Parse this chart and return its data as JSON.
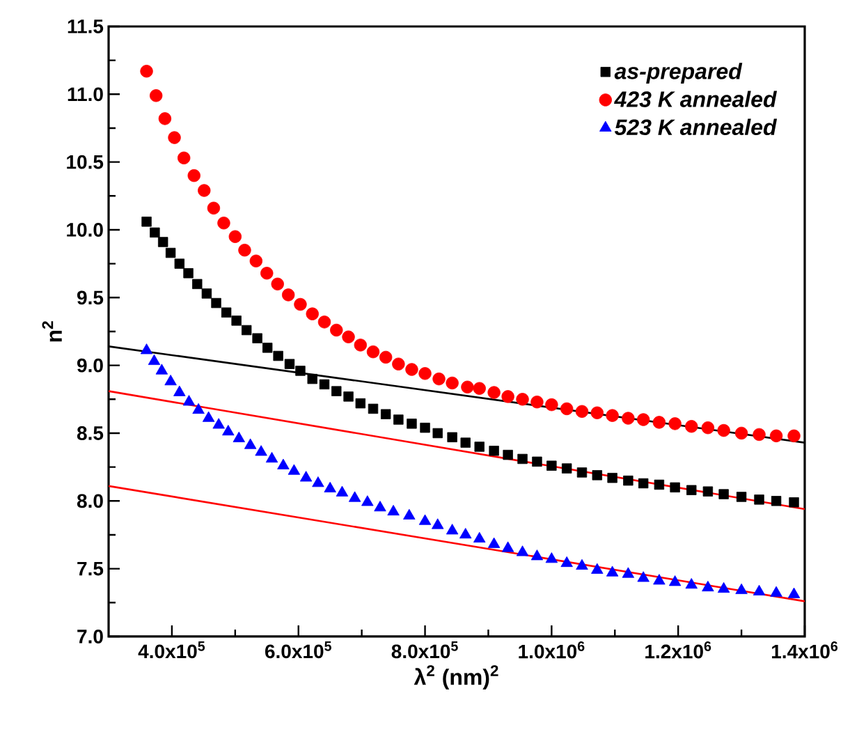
{
  "chart_data": {
    "type": "scatter",
    "xlabel": "λ$^{2}$ (nm)$^{2}$",
    "ylabel": "n$^{2}$",
    "xlim": [
      300000,
      1400000
    ],
    "xticks": [
      {
        "value": 400000,
        "label": "4.0x10$^{5}$"
      },
      {
        "value": 600000,
        "label": "6.0x10$^{5}$"
      },
      {
        "value": 800000,
        "label": "8.0x10$^{5}$"
      },
      {
        "value": 1000000,
        "label": "1.0x10$^{6}$"
      },
      {
        "value": 1200000,
        "label": "1.2x10$^{6}$"
      },
      {
        "value": 1400000,
        "label": "1.4x10$^{6}$"
      }
    ],
    "ylim": [
      7.0,
      11.5
    ],
    "yticks": [
      {
        "value": 7,
        "label": "7.0"
      },
      {
        "value": 7.5,
        "label": "7.5"
      },
      {
        "value": 8,
        "label": "8.0"
      },
      {
        "value": 8.5,
        "label": "8.5"
      },
      {
        "value": 9,
        "label": "9.0"
      },
      {
        "value": 9.5,
        "label": "9.5"
      },
      {
        "value": 10,
        "label": "10.0"
      },
      {
        "value": 10.5,
        "label": "10.5"
      },
      {
        "value": 11,
        "label": "11.0"
      },
      {
        "value": 11.5,
        "label": "11.5"
      }
    ],
    "legend": "top right",
    "grid": false,
    "series": [
      {
        "name": "as-prepared",
        "color": "#000000",
        "marker": "square",
        "x": [
          360000,
          373000,
          386000,
          398000,
          412000,
          426000,
          440000,
          455000,
          470000,
          486000,
          502000,
          518000,
          535000,
          551000,
          568000,
          586000,
          603000,
          622000,
          641000,
          660000,
          679000,
          698000,
          718000,
          738000,
          758000,
          779000,
          800000,
          820000,
          843000,
          864000,
          886000,
          909000,
          931000,
          954000,
          977000,
          1000000,
          1024000,
          1048000,
          1072000,
          1096000,
          1121000,
          1145000,
          1170000,
          1195000,
          1221000,
          1247000,
          1272000,
          1300000,
          1328000,
          1355000,
          1383000
        ],
        "values": [
          10.06,
          9.98,
          9.91,
          9.83,
          9.75,
          9.68,
          9.6,
          9.53,
          9.46,
          9.39,
          9.33,
          9.26,
          9.2,
          9.13,
          9.07,
          9.01,
          8.96,
          8.9,
          8.86,
          8.81,
          8.77,
          8.72,
          8.68,
          8.64,
          8.6,
          8.57,
          8.54,
          8.5,
          8.47,
          8.43,
          8.4,
          8.37,
          8.34,
          8.31,
          8.29,
          8.26,
          8.24,
          8.21,
          8.19,
          8.17,
          8.15,
          8.13,
          8.12,
          8.1,
          8.08,
          8.07,
          8.05,
          8.03,
          8.01,
          8.0,
          7.99
        ]
      },
      {
        "name": "423 K annealed",
        "color": "#ff0000",
        "marker": "circle",
        "x": [
          360000,
          375000,
          389000,
          404000,
          419000,
          435000,
          451000,
          466000,
          482000,
          500000,
          515000,
          533000,
          550000,
          567000,
          584000,
          603000,
          622000,
          641000,
          660000,
          679000,
          698000,
          718000,
          738000,
          758000,
          779000,
          800000,
          822000,
          843000,
          867000,
          886000,
          909000,
          931000,
          954000,
          977000,
          1000000,
          1024000,
          1048000,
          1072000,
          1096000,
          1121000,
          1145000,
          1170000,
          1195000,
          1221000,
          1247000,
          1272000,
          1300000,
          1328000,
          1355000,
          1383000
        ],
        "values": [
          11.17,
          10.99,
          10.82,
          10.68,
          10.53,
          10.4,
          10.29,
          10.16,
          10.05,
          9.95,
          9.85,
          9.77,
          9.68,
          9.6,
          9.52,
          9.45,
          9.38,
          9.32,
          9.26,
          9.21,
          9.15,
          9.1,
          9.06,
          9.01,
          8.97,
          8.94,
          8.9,
          8.87,
          8.84,
          8.83,
          8.8,
          8.77,
          8.75,
          8.73,
          8.71,
          8.68,
          8.66,
          8.65,
          8.63,
          8.61,
          8.6,
          8.58,
          8.57,
          8.55,
          8.54,
          8.52,
          8.5,
          8.49,
          8.48,
          8.48
        ]
      },
      {
        "name": "523 K annealed",
        "color": "#0000ff",
        "marker": "triangle",
        "x": [
          360000,
          372000,
          384000,
          398000,
          412000,
          427000,
          442000,
          458000,
          474000,
          489000,
          506000,
          524000,
          541000,
          558000,
          576000,
          593000,
          612000,
          631000,
          650000,
          669000,
          689000,
          709000,
          729000,
          750000,
          775000,
          800000,
          820000,
          843000,
          864000,
          886000,
          909000,
          931000,
          954000,
          977000,
          1000000,
          1024000,
          1048000,
          1072000,
          1096000,
          1121000,
          1145000,
          1170000,
          1195000,
          1221000,
          1247000,
          1272000,
          1300000,
          1328000,
          1355000,
          1383000
        ],
        "values": [
          9.11,
          9.03,
          8.96,
          8.88,
          8.8,
          8.73,
          8.67,
          8.61,
          8.56,
          8.51,
          8.46,
          8.41,
          8.36,
          8.31,
          8.26,
          8.22,
          8.17,
          8.13,
          8.09,
          8.06,
          8.02,
          7.99,
          7.95,
          7.92,
          7.89,
          7.85,
          7.82,
          7.78,
          7.75,
          7.72,
          7.68,
          7.65,
          7.62,
          7.59,
          7.57,
          7.54,
          7.52,
          7.49,
          7.47,
          7.46,
          7.43,
          7.41,
          7.4,
          7.38,
          7.36,
          7.35,
          7.34,
          7.33,
          7.32,
          7.31
        ]
      },
      {
        "type": "line",
        "color": "#000000",
        "marker": "none",
        "x": [
          300000,
          1400000
        ],
        "values": [
          9.14,
          8.43
        ]
      },
      {
        "type": "line",
        "color": "#ff0000",
        "marker": "none",
        "x": [
          300000,
          1400000
        ],
        "values": [
          8.81,
          7.94
        ]
      },
      {
        "type": "line",
        "color": "#ff0000",
        "marker": "none",
        "x": [
          300000,
          1400000
        ],
        "values": [
          8.11,
          7.26
        ]
      }
    ]
  }
}
